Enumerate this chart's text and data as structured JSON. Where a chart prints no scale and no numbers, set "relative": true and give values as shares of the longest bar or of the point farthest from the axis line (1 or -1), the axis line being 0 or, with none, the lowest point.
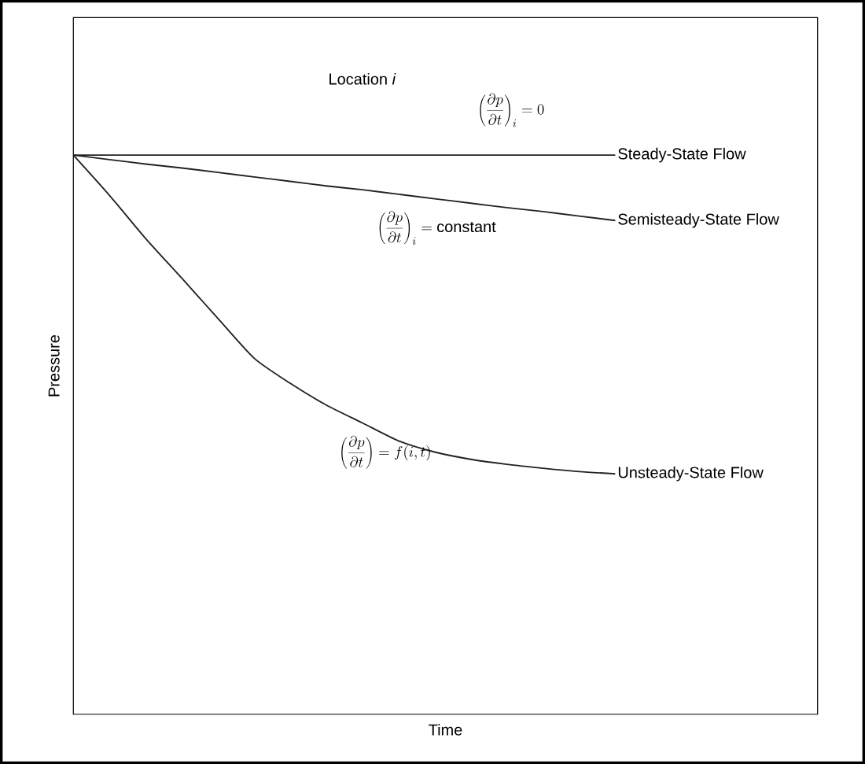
{
  "chart_data": {
    "type": "line",
    "relative": true,
    "xlabel": "Time",
    "ylabel": "Pressure",
    "categories": [
      null,
      null,
      null,
      null,
      null,
      null,
      null,
      null,
      null,
      null,
      null,
      null,
      null,
      null,
      null,
      null,
      null,
      null,
      null,
      null,
      null
    ],
    "series": [
      {
        "name": "Steady-State Flow",
        "color": "#222222",
        "values": [
          1,
          1,
          1,
          1,
          1,
          1,
          1,
          1,
          1,
          1,
          1,
          1,
          1,
          1,
          1,
          1,
          null,
          null,
          null,
          null,
          null
        ]
      },
      {
        "name": "Semisteady-State Flow",
        "color": "#222222",
        "values": [
          1,
          0.992,
          0.984,
          0.977,
          0.969,
          0.961,
          0.953,
          0.945,
          0.938,
          0.93,
          0.922,
          0.914,
          0.906,
          0.899,
          0.891,
          0.883,
          null,
          null,
          null,
          null,
          null
        ]
      },
      {
        "name": "Unsteady-State Flow",
        "color": "#222222",
        "values": [
          1,
          0.928,
          0.851,
          0.78,
          0.708,
          0.637,
          0.592,
          0.553,
          0.521,
          0.489,
          0.469,
          0.456,
          0.447,
          0.44,
          0.434,
          0.43,
          null,
          null,
          null,
          null,
          null
        ]
      }
    ],
    "annotations": [
      "Location *i*",
      "\\left(\\frac{\\partial p}{\\partial t}\\right)_i = 0",
      "\\left(\\frac{\\partial p}{\\partial t}\\right)_i = \\mbox{constant}",
      "\\left(\\frac{\\partial p}{\\partial t}\\right) = f(i,t)"
    ],
    "legend": false,
    "marker": "none",
    "line_style": "solid"
  }
}
